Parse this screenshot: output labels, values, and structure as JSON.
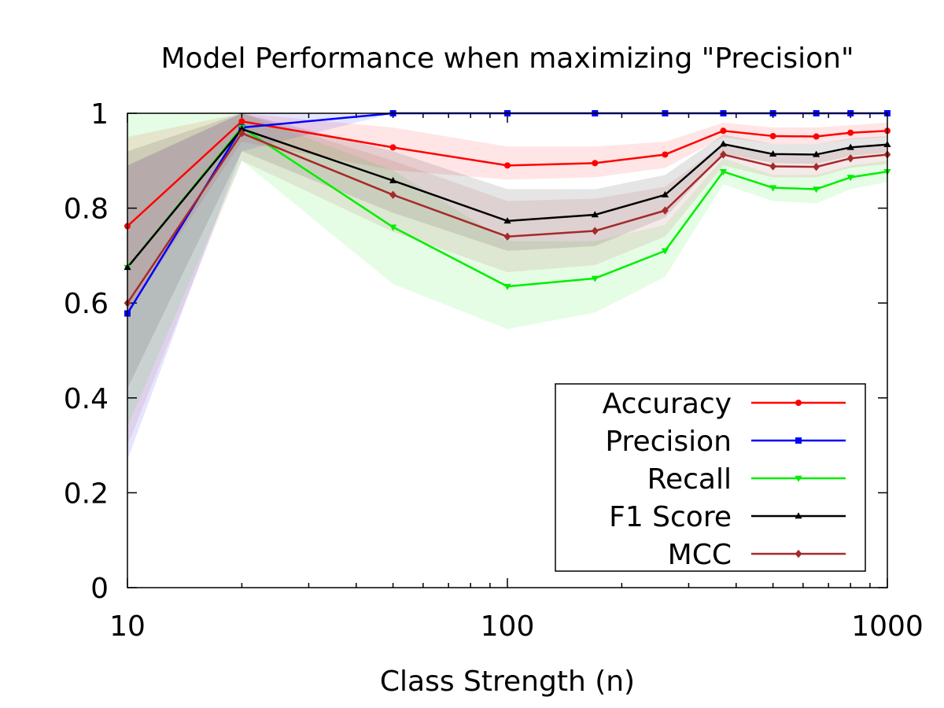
{
  "chart_data": {
    "type": "line",
    "title": "Model Performance when maximizing \"Precision\"",
    "xlabel": "Class Strength (n)",
    "ylabel": "",
    "x_scale": "log",
    "xlim": [
      10,
      1000
    ],
    "ylim": [
      0,
      1
    ],
    "x_ticks": [
      10,
      100,
      1000
    ],
    "x_tick_labels": [
      "10",
      "100",
      "1000"
    ],
    "y_ticks": [
      0,
      0.2,
      0.4,
      0.6,
      0.8,
      1
    ],
    "y_tick_labels": [
      "0",
      "0.2",
      "0.4",
      "0.6",
      "0.8",
      "1"
    ],
    "grid": false,
    "legend_position": "bottom-right",
    "x": [
      10,
      20,
      50,
      100,
      170,
      260,
      370,
      500,
      650,
      800,
      1000
    ],
    "series": [
      {
        "name": "Accuracy",
        "color": "#ff0000",
        "marker": "circle",
        "values": [
          0.762,
          0.983,
          0.928,
          0.89,
          0.895,
          0.913,
          0.963,
          0.952,
          0.951,
          0.959,
          0.963
        ],
        "lower": [
          0.58,
          0.94,
          0.88,
          0.86,
          0.865,
          0.885,
          0.95,
          0.935,
          0.935,
          0.945,
          0.95
        ],
        "upper": [
          0.95,
          1.0,
          0.97,
          0.93,
          0.93,
          0.94,
          0.98,
          0.97,
          0.97,
          0.975,
          0.98
        ]
      },
      {
        "name": "Precision",
        "color": "#0000ff",
        "marker": "square",
        "values": [
          0.578,
          0.97,
          1.0,
          1.0,
          1.0,
          1.0,
          1.0,
          1.0,
          1.0,
          1.0,
          1.0
        ],
        "lower": [
          0.27,
          0.92,
          1.0,
          1.0,
          1.0,
          1.0,
          1.0,
          1.0,
          1.0,
          1.0,
          1.0
        ],
        "upper": [
          0.89,
          1.0,
          1.0,
          1.0,
          1.0,
          1.0,
          1.0,
          1.0,
          1.0,
          1.0,
          1.0
        ]
      },
      {
        "name": "Recall",
        "color": "#00ee00",
        "marker": "triangle-down",
        "values": [
          0.675,
          0.97,
          0.76,
          0.635,
          0.652,
          0.71,
          0.877,
          0.843,
          0.84,
          0.865,
          0.877
        ],
        "lower": [
          0.34,
          0.9,
          0.64,
          0.545,
          0.58,
          0.655,
          0.85,
          0.815,
          0.81,
          0.84,
          0.855
        ],
        "upper": [
          1.0,
          1.0,
          0.88,
          0.73,
          0.73,
          0.765,
          0.905,
          0.87,
          0.87,
          0.89,
          0.9
        ]
      },
      {
        "name": "F1 Score",
        "color": "#000000",
        "marker": "triangle-up",
        "values": [
          0.675,
          0.967,
          0.858,
          0.773,
          0.786,
          0.828,
          0.935,
          0.914,
          0.913,
          0.928,
          0.934
        ],
        "lower": [
          0.42,
          0.92,
          0.79,
          0.71,
          0.72,
          0.78,
          0.915,
          0.895,
          0.893,
          0.91,
          0.917
        ],
        "upper": [
          0.92,
          1.0,
          0.92,
          0.84,
          0.84,
          0.87,
          0.955,
          0.935,
          0.935,
          0.947,
          0.952
        ]
      },
      {
        "name": "MCC",
        "color": "#a52a2a",
        "marker": "diamond",
        "values": [
          0.6,
          0.958,
          0.828,
          0.74,
          0.752,
          0.795,
          0.913,
          0.888,
          0.887,
          0.905,
          0.913
        ],
        "lower": [
          0.3,
          0.9,
          0.75,
          0.665,
          0.68,
          0.74,
          0.89,
          0.865,
          0.865,
          0.885,
          0.893
        ],
        "upper": [
          0.89,
          1.0,
          0.9,
          0.815,
          0.82,
          0.845,
          0.935,
          0.91,
          0.91,
          0.925,
          0.932
        ]
      }
    ]
  }
}
